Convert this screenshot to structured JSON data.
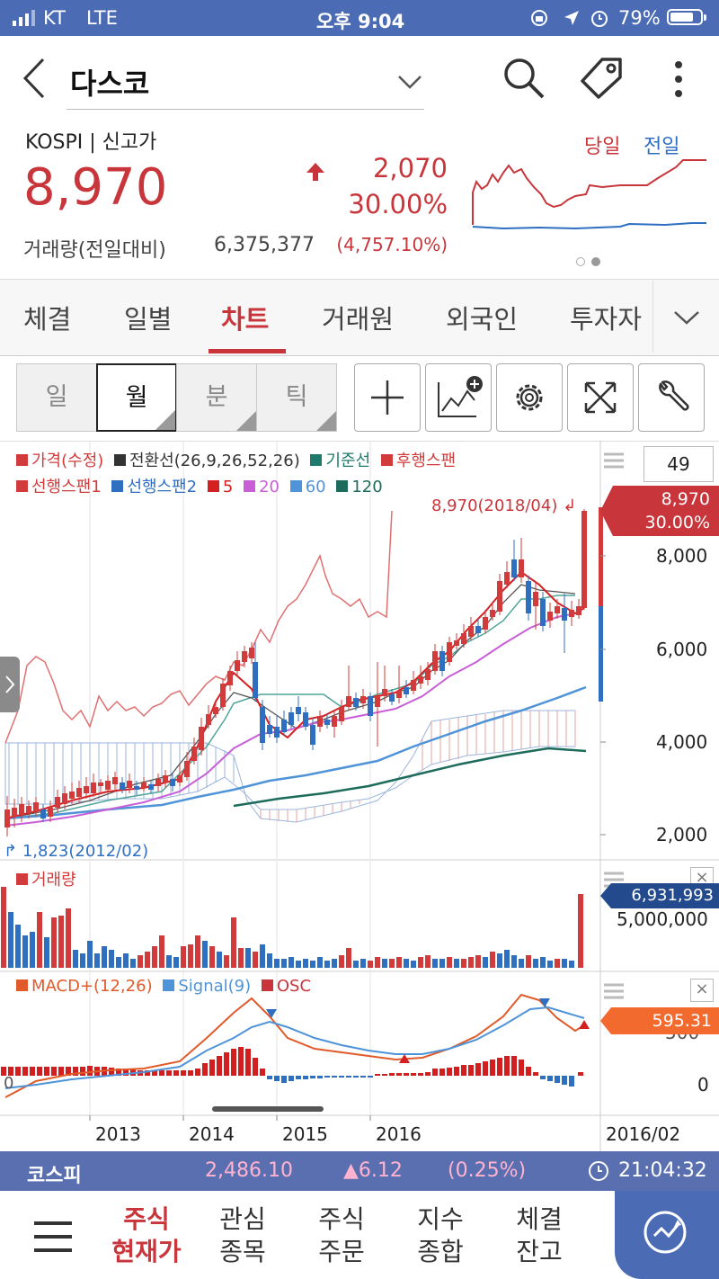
{
  "status_bar": {
    "carrier": "KT",
    "network": "LTE",
    "time": "오후 9:04",
    "battery": "79%",
    "battery_level": 0.79
  },
  "header": {
    "stock_name": "다스코"
  },
  "summary": {
    "market": "KOSPI | 신고가",
    "price": "8,970",
    "change": "2,070",
    "change_pct": "30.00%",
    "volume_label": "거래량(전일대비)",
    "volume": "6,375,377",
    "volume_pct": "(4,757.10%)",
    "mini_legend_today": "당일",
    "mini_legend_prev": "전일"
  },
  "tabs": [
    {
      "label": "체결",
      "active": false
    },
    {
      "label": "일별",
      "active": false
    },
    {
      "label": "차트",
      "active": true
    },
    {
      "label": "거래원",
      "active": false
    },
    {
      "label": "외국인",
      "active": false
    },
    {
      "label": "투자자",
      "active": false
    }
  ],
  "period_buttons": [
    {
      "label": "일",
      "selected": false
    },
    {
      "label": "월",
      "selected": true
    },
    {
      "label": "분",
      "selected": false
    },
    {
      "label": "틱",
      "selected": false
    }
  ],
  "chart": {
    "legend_line1": [
      "가격(수정)",
      "전환선(26,9,26,52,26)",
      "기준선",
      "후행스팬"
    ],
    "legend_line2": [
      "선행스팬1",
      "선행스팬2",
      "5",
      "20",
      "60",
      "120"
    ],
    "legend_colors": {
      "price": "#d23b3b",
      "conversion": "#333333",
      "base": "#1e7a6a",
      "lagging": "#d23b3b",
      "lead1": "#d23b3b",
      "lead2": "#2f6fc2",
      "ma5": "#d42020",
      "ma20": "#c85fd6",
      "ma60": "#4f93d8",
      "ma120": "#1d6b5a"
    },
    "count_box": "49",
    "high_label": "8,970(2018/04)",
    "low_label": "1,823(2012/02)",
    "price_badge": {
      "value": "8,970",
      "pct": "30.00%"
    },
    "y_ticks": [
      "8,000",
      "6,000",
      "4,000",
      "2,000"
    ],
    "volume_title": "거래량",
    "volume_tick": "5,000,000",
    "volume_badge": "6,931,993",
    "macd_legend": [
      "MACD+(12,26)",
      "Signal(9)",
      "OSC"
    ],
    "macd_badge": "595.31",
    "macd_ticks": [
      "500",
      "0"
    ],
    "x_ticks": [
      "2013",
      "2014",
      "2015",
      "2016"
    ],
    "cursor_date": "2016/02"
  },
  "chart_data": {
    "type": "candlestick",
    "interval": "monthly",
    "price_range": [
      1500,
      9300
    ],
    "latest_close": 8970,
    "high": {
      "value": 8970,
      "date": "2018/04"
    },
    "low": {
      "value": 1823,
      "date": "2012/02"
    },
    "latest_volume": 6931993,
    "latest_macd": 595.31
  },
  "ticker_bar": {
    "index_name": "코스피",
    "index_value": "2,486.10",
    "index_change": "▲6.12",
    "index_pct": "(0.25%)",
    "clock": "21:04:32"
  },
  "bottom_nav": [
    {
      "line1": "주식",
      "line2": "현재가",
      "active": true
    },
    {
      "line1": "관심",
      "line2": "종목",
      "active": false
    },
    {
      "line1": "주식",
      "line2": "주문",
      "active": false
    },
    {
      "line1": "지수",
      "line2": "종합",
      "active": false
    },
    {
      "line1": "체결",
      "line2": "잔고",
      "active": false
    }
  ]
}
